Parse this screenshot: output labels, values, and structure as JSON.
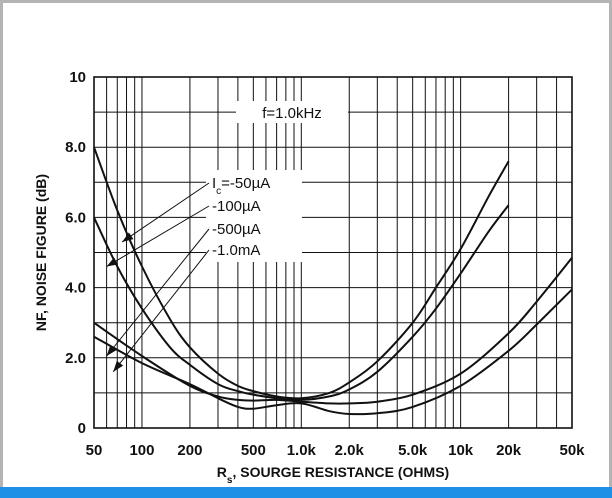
{
  "chart_data": {
    "type": "line",
    "title": "",
    "annotation": "f=1.0kHz",
    "xscale": "log",
    "xlim": [
      50,
      50000
    ],
    "ylim": [
      0,
      10
    ],
    "xlabel_main": "R",
    "xlabel_sub": "s",
    "xlabel_rest": ", SOURGE RESISTANCE (OHMS)",
    "ylabel": "NF, NOISE FIGURE (dB)",
    "x_ticks": [
      {
        "value": 50,
        "label": "50"
      },
      {
        "value": 100,
        "label": "100"
      },
      {
        "value": 200,
        "label": "200"
      },
      {
        "value": 500,
        "label": "500"
      },
      {
        "value": 1000,
        "label": "1.0k"
      },
      {
        "value": 2000,
        "label": "2.0k"
      },
      {
        "value": 5000,
        "label": "5.0k"
      },
      {
        "value": 10000,
        "label": "10k"
      },
      {
        "value": 20000,
        "label": "20k"
      },
      {
        "value": 50000,
        "label": "50k"
      }
    ],
    "y_ticks": [
      {
        "value": 0,
        "label": "0"
      },
      {
        "value": 2,
        "label": "2.0"
      },
      {
        "value": 4,
        "label": "4.0"
      },
      {
        "value": 6,
        "label": "6.0"
      },
      {
        "value": 8,
        "label": "8.0"
      },
      {
        "value": 10,
        "label": "10"
      }
    ],
    "grid": true,
    "series": [
      {
        "name": "Ic=-50µA",
        "legend_main": "I",
        "legend_sub": "c",
        "legend_rest": "=-50µA",
        "x": [
          50,
          70,
          100,
          150,
          200,
          300,
          400,
          500,
          700,
          1000,
          1500,
          2000,
          3000,
          5000,
          7000,
          10000,
          15000,
          20000
        ],
        "y": [
          8.0,
          6.2,
          4.6,
          3.1,
          2.3,
          1.55,
          1.2,
          1.05,
          0.9,
          0.85,
          1.0,
          1.3,
          1.9,
          3.0,
          4.0,
          5.1,
          6.6,
          7.6
        ]
      },
      {
        "name": "-100µA",
        "x": [
          50,
          70,
          100,
          150,
          200,
          300,
          400,
          500,
          700,
          1000,
          1500,
          2000,
          3000,
          5000,
          7000,
          10000,
          15000,
          20000
        ],
        "y": [
          6.0,
          4.6,
          3.4,
          2.3,
          1.8,
          1.25,
          1.05,
          0.95,
          0.85,
          0.8,
          0.9,
          1.1,
          1.6,
          2.6,
          3.4,
          4.4,
          5.6,
          6.35
        ]
      },
      {
        "name": "-500µA",
        "x": [
          50,
          100,
          200,
          300,
          400,
          500,
          700,
          1000,
          1500,
          2000,
          3000,
          5000,
          10000,
          20000,
          30000,
          50000
        ],
        "y": [
          3.0,
          2.05,
          1.2,
          0.9,
          0.8,
          0.78,
          0.8,
          0.75,
          0.7,
          0.7,
          0.75,
          0.95,
          1.55,
          2.7,
          3.6,
          4.85
        ]
      },
      {
        "name": "-1.0mA",
        "x": [
          50,
          100,
          200,
          300,
          400,
          500,
          700,
          1000,
          1500,
          2000,
          3000,
          5000,
          10000,
          20000,
          30000,
          50000
        ],
        "y": [
          2.6,
          1.85,
          1.25,
          0.85,
          0.6,
          0.55,
          0.65,
          0.7,
          0.48,
          0.4,
          0.42,
          0.6,
          1.2,
          2.2,
          2.95,
          3.95
        ]
      }
    ],
    "legend_arrows": [
      {
        "series": "Ic=-50µA",
        "x": 75,
        "y": 5.3
      },
      {
        "series": "-100µA",
        "x": 60,
        "y": 4.6
      },
      {
        "series": "-500µA",
        "x": 60,
        "y": 2.05
      },
      {
        "series": "-1.0mA",
        "x": 66,
        "y": 1.6
      }
    ]
  }
}
